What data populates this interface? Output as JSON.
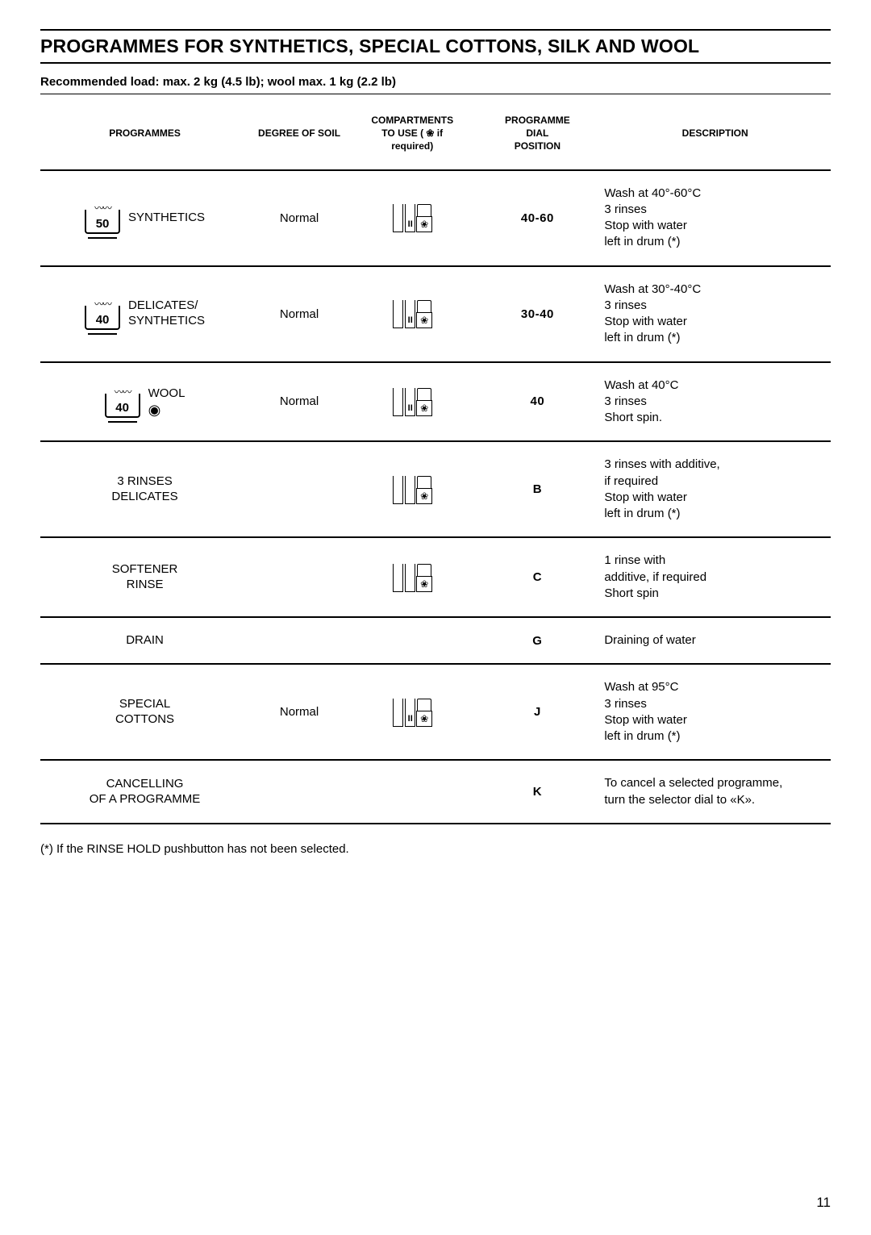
{
  "page": {
    "title": "PROGRAMMES FOR SYNTHETICS, SPECIAL COTTONS, SILK AND WOOL",
    "subtitle": "Recommended load: max. 2 kg (4.5 lb); wool max. 1 kg (2.2 lb)",
    "footnote": "(*) If the RINSE HOLD pushbutton has not been selected.",
    "number": "11"
  },
  "headers": {
    "programmes": "PROGRAMMES",
    "soil": "DEGREE OF SOIL",
    "compartments_l1": "COMPARTMENTS",
    "compartments_l2": "TO USE ( ❀ if",
    "compartments_l3": "required)",
    "dial_l1": "PROGRAMME",
    "dial_l2": "DIAL",
    "dial_l3": "POSITION",
    "description": "DESCRIPTION"
  },
  "rows": [
    {
      "temp": "50",
      "name": "SYNTHETICS",
      "soil": "Normal",
      "dial": "40-60",
      "desc": "Wash at 40°-60°C\n3 rinses\nStop with water\nleft in drum (*)",
      "show_temp_box": true,
      "show_comp": true,
      "comp_mark": "II"
    },
    {
      "temp": "40",
      "name": "DELICATES/\nSYNTHETICS",
      "soil": "Normal",
      "dial": "30-40",
      "desc": "Wash at 30°-40°C\n3 rinses\nStop with water\nleft in drum (*)",
      "show_temp_box": true,
      "show_comp": true,
      "comp_mark": "II"
    },
    {
      "temp": "40",
      "name": "WOOL",
      "wool_symbol": "◉",
      "soil": "Normal",
      "dial": "40",
      "desc": "Wash at 40°C\n3 rinses\nShort spin.",
      "show_temp_box": true,
      "show_comp": true,
      "comp_mark": "II"
    },
    {
      "name": "3 RINSES\nDELICATES",
      "soil": "",
      "dial": "B",
      "desc": "3 rinses with additive,\nif required\nStop with water\nleft in drum (*)",
      "show_temp_box": false,
      "show_comp": true,
      "comp_mark": ""
    },
    {
      "name": "SOFTENER\nRINSE",
      "soil": "",
      "dial": "C",
      "desc": "1 rinse with\nadditive, if required\nShort spin",
      "show_temp_box": false,
      "show_comp": true,
      "comp_mark": ""
    },
    {
      "name": "DRAIN",
      "soil": "",
      "dial": "G",
      "desc": "Draining of water",
      "show_temp_box": false,
      "show_comp": false
    },
    {
      "name": "SPECIAL\nCOTTONS",
      "soil": "Normal",
      "dial": "J",
      "desc": "Wash at 95°C\n3 rinses\nStop with water\nleft in drum (*)",
      "show_temp_box": false,
      "show_comp": true,
      "comp_mark": "II"
    },
    {
      "name": "CANCELLING\nOF A PROGRAMME",
      "soil": "",
      "dial": "K",
      "desc": "To cancel a selected programme,\nturn the selector dial to «K».",
      "show_temp_box": false,
      "show_comp": false
    }
  ]
}
